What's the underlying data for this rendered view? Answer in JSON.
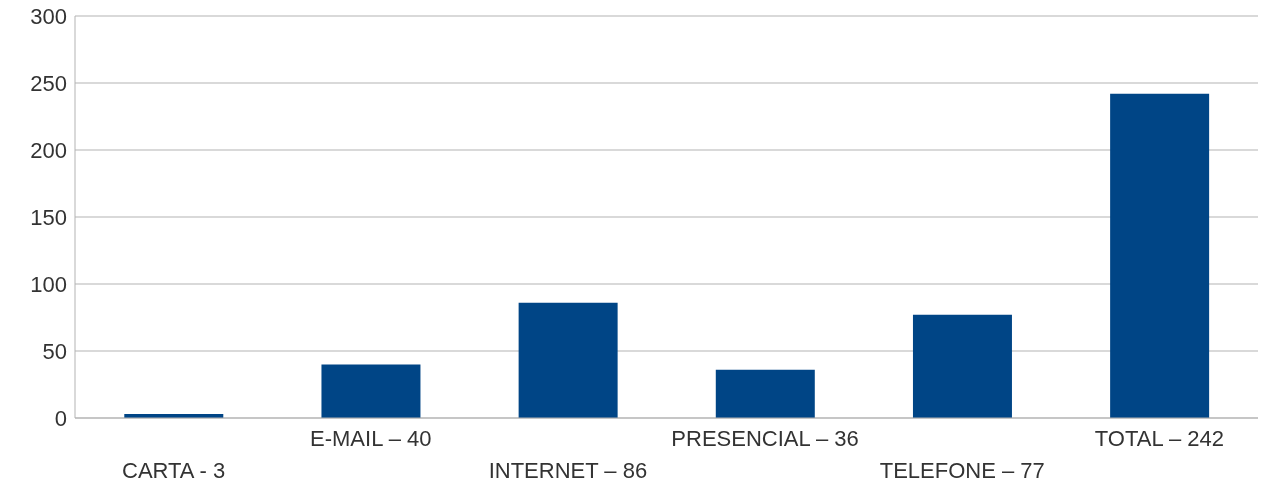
{
  "chart_data": {
    "type": "bar",
    "categories": [
      "CARTA - 3",
      "E-MAIL – 40",
      "INTERNET – 86",
      "PRESENCIAL – 36",
      "TELEFONE – 77",
      "TOTAL – 242"
    ],
    "values": [
      3,
      40,
      86,
      36,
      77,
      242
    ],
    "color": "#004586",
    "ylim": [
      0,
      300
    ],
    "yticks": [
      0,
      50,
      100,
      150,
      200,
      250,
      300
    ],
    "grid": "y"
  }
}
